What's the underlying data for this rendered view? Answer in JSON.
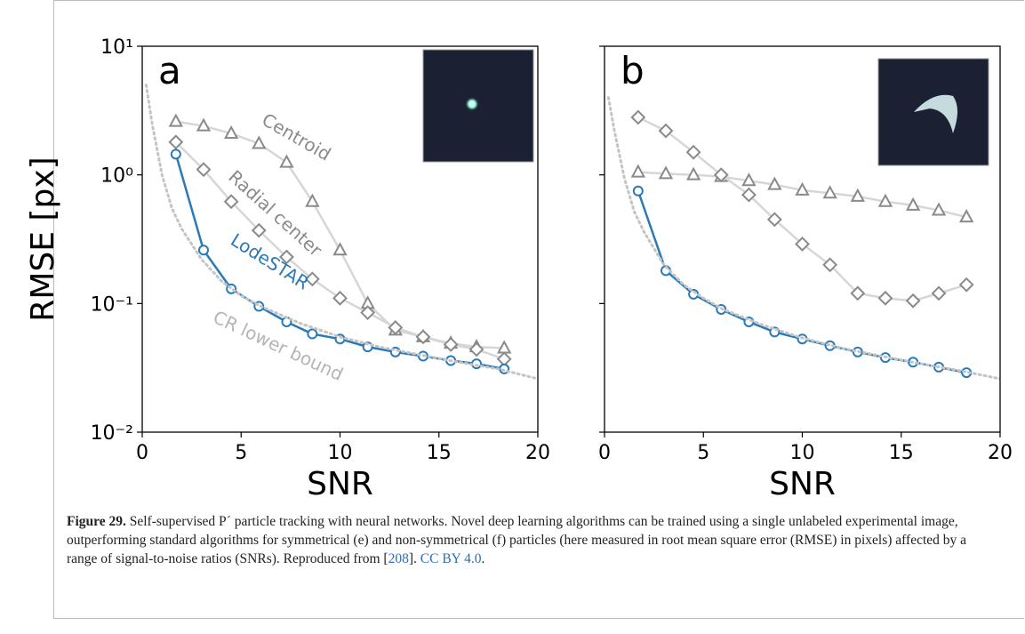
{
  "chart_data": [
    {
      "type": "line",
      "panel": "a",
      "ylabel": "RMSE [px]",
      "xlabel": "SNR",
      "xlim": [
        0,
        20
      ],
      "xticks": [
        0,
        5,
        10,
        15,
        20
      ],
      "ylim": [
        0.01,
        10
      ],
      "yscale": "log",
      "show_ytick_labels": true,
      "yticks": [
        {
          "value": 10,
          "label": "10¹"
        },
        {
          "value": 1,
          "label": "10⁰"
        },
        {
          "value": 0.1,
          "label": "10⁻¹"
        },
        {
          "value": 0.01,
          "label": "10⁻²"
        }
      ],
      "series": [
        {
          "name": "Centroid",
          "marker": "triangle",
          "color": "#8a8a8a",
          "line_color": "#d6d6d6",
          "x": [
            1.7,
            3.1,
            4.5,
            5.9,
            7.3,
            8.6,
            10.0,
            11.4,
            12.8,
            14.2,
            15.6,
            16.9,
            18.3
          ],
          "values": [
            2.6,
            2.4,
            2.1,
            1.75,
            1.25,
            0.62,
            0.26,
            0.1,
            0.062,
            0.055,
            0.049,
            0.046,
            0.045
          ]
        },
        {
          "name": "Radial center",
          "marker": "diamond",
          "color": "#8a8a8a",
          "line_color": "#d6d6d6",
          "x": [
            1.7,
            3.1,
            4.5,
            5.9,
            7.3,
            8.6,
            10.0,
            11.4,
            12.8,
            14.2,
            15.6,
            16.9,
            18.3
          ],
          "values": [
            1.8,
            1.1,
            0.62,
            0.37,
            0.23,
            0.155,
            0.11,
            0.085,
            0.065,
            0.055,
            0.048,
            0.044,
            0.037
          ]
        },
        {
          "name": "LodeSTAR",
          "marker": "circle",
          "color": "#2a7ab8",
          "line_color": "#2a7ab8",
          "x": [
            1.7,
            3.1,
            4.5,
            5.9,
            7.3,
            8.6,
            10.0,
            11.4,
            12.8,
            14.2,
            15.6,
            16.9,
            18.3
          ],
          "values": [
            1.45,
            0.26,
            0.13,
            0.095,
            0.072,
            0.058,
            0.053,
            0.046,
            0.042,
            0.039,
            0.036,
            0.034,
            0.031
          ]
        },
        {
          "name": "CR lower bound",
          "marker": "none",
          "color": "#c4c4c4",
          "line_color": "#c4c4c4",
          "dashed": true,
          "x": [
            0.2,
            0.5,
            1,
            1.5,
            2,
            3,
            4,
            5,
            6,
            8,
            10,
            12,
            14,
            16,
            18,
            20
          ],
          "values": [
            5,
            2.5,
            1.0,
            0.55,
            0.38,
            0.22,
            0.15,
            0.115,
            0.095,
            0.07,
            0.055,
            0.046,
            0.04,
            0.035,
            0.031,
            0.026
          ]
        }
      ]
    },
    {
      "type": "line",
      "panel": "b",
      "xlabel": "SNR",
      "xlim": [
        0,
        20
      ],
      "xticks": [
        0,
        5,
        10,
        15,
        20
      ],
      "ylim": [
        0.01,
        10
      ],
      "yscale": "log",
      "show_ytick_labels": false,
      "yticks": [
        10,
        1,
        0.1,
        0.01
      ],
      "series": [
        {
          "marker": "triangle",
          "color": "#8a8a8a",
          "line_color": "#d6d6d6",
          "x": [
            1.7,
            3.1,
            4.5,
            5.9,
            7.3,
            8.6,
            10.0,
            11.4,
            12.8,
            14.2,
            15.6,
            16.9,
            18.3
          ],
          "values": [
            1.05,
            1.02,
            1.0,
            0.97,
            0.9,
            0.84,
            0.76,
            0.72,
            0.68,
            0.62,
            0.58,
            0.53,
            0.47
          ]
        },
        {
          "marker": "diamond",
          "color": "#8a8a8a",
          "line_color": "#d6d6d6",
          "x": [
            1.7,
            3.1,
            4.5,
            5.9,
            7.3,
            8.6,
            10.0,
            11.4,
            12.8,
            14.2,
            15.6,
            16.9,
            18.3
          ],
          "values": [
            2.8,
            2.2,
            1.5,
            1.0,
            0.7,
            0.45,
            0.29,
            0.2,
            0.12,
            0.11,
            0.105,
            0.12,
            0.14
          ]
        },
        {
          "marker": "circle",
          "color": "#2a7ab8",
          "line_color": "#2a7ab8",
          "x": [
            1.7,
            3.1,
            4.5,
            5.9,
            7.3,
            8.6,
            10.0,
            11.4,
            12.8,
            14.2,
            15.6,
            16.9,
            18.3
          ],
          "values": [
            0.75,
            0.18,
            0.118,
            0.09,
            0.072,
            0.06,
            0.053,
            0.047,
            0.042,
            0.038,
            0.035,
            0.032,
            0.029
          ]
        },
        {
          "marker": "none",
          "color": "#c4c4c4",
          "line_color": "#c4c4c4",
          "dashed": true,
          "x": [
            0.2,
            0.5,
            1,
            1.5,
            2,
            3,
            4,
            5,
            6,
            8,
            10,
            12,
            14,
            16,
            18,
            20
          ],
          "values": [
            4,
            2.2,
            0.95,
            0.52,
            0.36,
            0.2,
            0.14,
            0.11,
            0.09,
            0.068,
            0.054,
            0.045,
            0.039,
            0.034,
            0.03,
            0.026
          ]
        }
      ]
    }
  ],
  "caption": {
    "label": "Figure 29.",
    "text": " Self-supervised P´ particle tracking with neural networks. Novel deep learning algorithms can be trained using a single unlabeled experimental image, outperforming standard algorithms for symmetrical (e) and non-symmetrical (f) particles (here measured in root mean square error (RMSE) in pixels) affected by a range of signal-to-noise ratios (SNRs). Reproduced from [",
    "ref": "208",
    "mid": "]. ",
    "license": "CC BY 4.0",
    "end": "."
  }
}
